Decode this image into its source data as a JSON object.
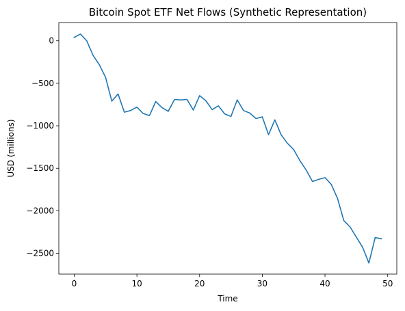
{
  "chart_data": {
    "type": "line",
    "title": "Bitcoin Spot ETF Net Flows (Synthetic Representation)",
    "xlabel": "Time",
    "ylabel": "USD (millions)",
    "xlim": [
      -2.45,
      51.45
    ],
    "ylim": [
      -2745,
      215
    ],
    "xticks": [
      0,
      10,
      20,
      30,
      40,
      50
    ],
    "yticks": [
      0,
      -500,
      -1000,
      -1500,
      -2000,
      -2500
    ],
    "xtick_labels": [
      "0",
      "10",
      "20",
      "30",
      "40",
      "50"
    ],
    "ytick_labels": [
      "0",
      "−500",
      "−1000",
      "−1500",
      "−2000",
      "−2500"
    ],
    "grid": false,
    "line_color": "#1f77b4",
    "series": [
      {
        "x": [
          0,
          1,
          2,
          3,
          4,
          5,
          6,
          7,
          8,
          9,
          10,
          11,
          12,
          13,
          14,
          15,
          16,
          17,
          18,
          19,
          20,
          21,
          22,
          23,
          24,
          25,
          26,
          27,
          28,
          29,
          30,
          31,
          32,
          33,
          34,
          35,
          36,
          37,
          38,
          39,
          40,
          41,
          42,
          43,
          44,
          45,
          46,
          47,
          48,
          49
        ],
        "values": [
          40,
          80,
          0,
          -170,
          -280,
          -430,
          -710,
          -625,
          -840,
          -820,
          -780,
          -855,
          -880,
          -715,
          -785,
          -830,
          -690,
          -695,
          -690,
          -815,
          -645,
          -705,
          -810,
          -765,
          -860,
          -890,
          -695,
          -820,
          -850,
          -915,
          -895,
          -1105,
          -930,
          -1105,
          -1205,
          -1280,
          -1410,
          -1520,
          -1655,
          -1630,
          -1610,
          -1690,
          -1855,
          -2115,
          -2190,
          -2310,
          -2430,
          -2615,
          -2315,
          -2330
        ]
      }
    ]
  }
}
